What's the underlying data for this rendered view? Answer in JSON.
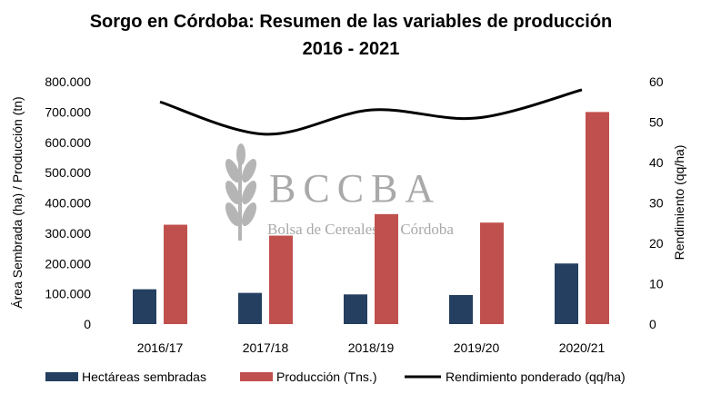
{
  "chart_data": {
    "type": "bar",
    "title_line1": "Sorgo en Córdoba: Resumen de las variables de producción",
    "title_line2": "2016 - 2021",
    "categories": [
      "2016/17",
      "2017/18",
      "2018/19",
      "2019/20",
      "2020/21"
    ],
    "series": [
      {
        "name": "Hectáreas sembradas",
        "type": "bar",
        "axis": "left",
        "color": "#243f60",
        "values": [
          115000,
          103000,
          98000,
          96000,
          200000
        ]
      },
      {
        "name": "Producción (Tns.)",
        "type": "bar",
        "axis": "left",
        "color": "#c0504d",
        "values": [
          328000,
          292000,
          363000,
          335000,
          700000
        ]
      },
      {
        "name": "Rendimiento ponderado (qq/ha)",
        "type": "line",
        "axis": "right",
        "color": "#000000",
        "values": [
          55,
          47,
          53,
          51,
          58
        ]
      }
    ],
    "y_left": {
      "label": "Área Sembrada (ha) / Producción (tn)",
      "min": 0,
      "max": 800000,
      "ticks": [
        "0",
        "100.000",
        "200.000",
        "300.000",
        "400.000",
        "500.000",
        "600.000",
        "700.000",
        "800.000"
      ]
    },
    "y_right": {
      "label": "Rendimiento (qq/ha)",
      "min": 0,
      "max": 60,
      "ticks": [
        "0",
        "10",
        "20",
        "30",
        "40",
        "50",
        "60"
      ]
    },
    "grid": false,
    "legend": "bottom"
  },
  "watermark": {
    "text": "BCCBA",
    "subtext": "Bolsa de Cereales de Córdoba"
  }
}
